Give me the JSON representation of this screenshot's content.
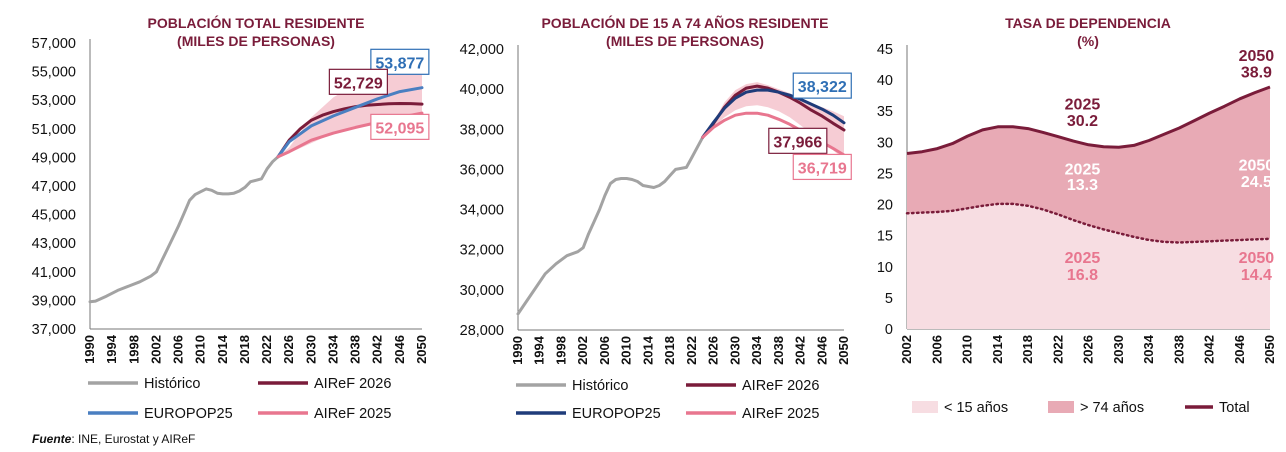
{
  "source": {
    "label": "Fuente",
    "text": ": INE, Eurostat y AIReF"
  },
  "chart_data": [
    {
      "type": "line",
      "title": "POBLACIÓN TOTAL RESIDENTE",
      "subtitle": "(MILES DE PERSONAS)",
      "ylim": [
        37000,
        57000
      ],
      "yticks": [
        37000,
        39000,
        41000,
        43000,
        45000,
        47000,
        49000,
        51000,
        53000,
        55000,
        57000
      ],
      "ytick_labels": [
        "37,000",
        "39,000",
        "41,000",
        "43,000",
        "45,000",
        "47,000",
        "49,000",
        "51,000",
        "53,000",
        "55,000",
        "57,000"
      ],
      "xlim": [
        1990,
        2050
      ],
      "xticks": [
        1990,
        1994,
        1998,
        2002,
        2006,
        2010,
        2014,
        2018,
        2022,
        2026,
        2030,
        2034,
        2038,
        2042,
        2046,
        2050
      ],
      "band": {
        "color": "#f4c3cc",
        "x": [
          2024,
          2026,
          2030,
          2034,
          2038,
          2042,
          2046,
          2050
        ],
        "low": [
          49050,
          49300,
          50000,
          50700,
          51150,
          51400,
          51500,
          51500
        ],
        "high": [
          49050,
          49700,
          51800,
          53200,
          54100,
          54700,
          55100,
          55200
        ]
      },
      "series": [
        {
          "name": "Histórico",
          "color": "#a3a3a3",
          "x": [
            1990,
            1991,
            1993,
            1995,
            1997,
            1999,
            2001,
            2002,
            2003,
            2004,
            2005,
            2006,
            2007,
            2008,
            2009,
            2010,
            2011,
            2012,
            2013,
            2014,
            2015,
            2016,
            2017,
            2018,
            2019,
            2020,
            2021,
            2022,
            2023,
            2024
          ],
          "y": [
            38900,
            38950,
            39300,
            39700,
            40000,
            40300,
            40700,
            41000,
            41800,
            42600,
            43400,
            44200,
            45100,
            46000,
            46400,
            46600,
            46800,
            46700,
            46500,
            46450,
            46450,
            46500,
            46650,
            46900,
            47300,
            47400,
            47500,
            48200,
            48700,
            49050
          ]
        },
        {
          "name": "AIReF 2026",
          "color": "#7a1c3a",
          "x": [
            2024,
            2026,
            2028,
            2030,
            2032,
            2034,
            2036,
            2038,
            2040,
            2042,
            2044,
            2046,
            2048,
            2050
          ],
          "y": [
            49050,
            50200,
            51000,
            51600,
            51950,
            52200,
            52400,
            52550,
            52650,
            52700,
            52750,
            52770,
            52760,
            52729
          ]
        },
        {
          "name": "EUROPOP25",
          "color": "#4a7fc1",
          "x": [
            2024,
            2026,
            2030,
            2034,
            2038,
            2042,
            2046,
            2050
          ],
          "y": [
            49050,
            50100,
            51200,
            51900,
            52500,
            53100,
            53600,
            53877
          ]
        },
        {
          "name": "AIReF 2025",
          "color": "#e8768f",
          "x": [
            2024,
            2026,
            2030,
            2034,
            2038,
            2042,
            2046,
            2050
          ],
          "y": [
            49050,
            49400,
            50200,
            50700,
            51100,
            51450,
            51800,
            52095
          ]
        }
      ],
      "labels": [
        {
          "text": "53,877",
          "color": "#2f6fb5",
          "x": 2046,
          "y": 55650
        },
        {
          "text": "52,729",
          "color": "#7a1c3a",
          "x": 2038.5,
          "y": 54250
        },
        {
          "text": "52,095",
          "color": "#e8768f",
          "x": 2046,
          "y": 51100
        }
      ],
      "legend": [
        "Histórico",
        "AIReF 2026",
        "EUROPOP25",
        "AIReF 2025"
      ]
    },
    {
      "type": "line",
      "title": "POBLACIÓN DE 15 A 74 AÑOS RESIDENTE",
      "subtitle": "(MILES DE PERSONAS)",
      "ylim": [
        28000,
        42000
      ],
      "yticks": [
        28000,
        30000,
        32000,
        34000,
        36000,
        38000,
        40000,
        42000
      ],
      "ytick_labels": [
        "28,000",
        "30,000",
        "32,000",
        "34,000",
        "36,000",
        "38,000",
        "40,000",
        "42,000"
      ],
      "xlim": [
        1990,
        2050
      ],
      "xticks": [
        1990,
        1994,
        1998,
        2002,
        2006,
        2010,
        2014,
        2018,
        2022,
        2026,
        2030,
        2034,
        2038,
        2042,
        2046,
        2050
      ],
      "band": {
        "color": "#f4c3cc",
        "x": [
          2024,
          2026,
          2028,
          2030,
          2032,
          2034,
          2036,
          2038,
          2040,
          2042,
          2044,
          2046,
          2048,
          2050
        ],
        "low": [
          37600,
          38100,
          38600,
          38950,
          39150,
          39200,
          39100,
          38900,
          38600,
          38200,
          37800,
          37400,
          36950,
          36500
        ],
        "high": [
          37600,
          38400,
          39350,
          39950,
          40250,
          40350,
          40200,
          40000,
          39800,
          39550,
          39300,
          39100,
          38900,
          38650
        ]
      },
      "series": [
        {
          "name": "Histórico",
          "color": "#a3a3a3",
          "x": [
            1990,
            1991,
            1993,
            1995,
            1997,
            1999,
            2001,
            2002,
            2003,
            2004,
            2005,
            2006,
            2007,
            2008,
            2009,
            2010,
            2011,
            2012,
            2013,
            2014,
            2015,
            2016,
            2017,
            2018,
            2019,
            2020,
            2021,
            2022,
            2023,
            2024
          ],
          "y": [
            28800,
            29200,
            30000,
            30800,
            31300,
            31700,
            31900,
            32100,
            32800,
            33400,
            34000,
            34700,
            35300,
            35500,
            35550,
            35550,
            35500,
            35400,
            35200,
            35150,
            35100,
            35200,
            35400,
            35700,
            36000,
            36050,
            36100,
            36600,
            37100,
            37600
          ]
        },
        {
          "name": "AIReF 2026",
          "color": "#7a1c3a",
          "x": [
            2024,
            2026,
            2028,
            2030,
            2032,
            2034,
            2036,
            2038,
            2040,
            2042,
            2044,
            2046,
            2048,
            2050
          ],
          "y": [
            37600,
            38300,
            39100,
            39700,
            40050,
            40150,
            40050,
            39850,
            39600,
            39300,
            38950,
            38650,
            38300,
            37966
          ]
        },
        {
          "name": "EUROPOP25",
          "color": "#1f3c7a",
          "x": [
            2024,
            2026,
            2028,
            2030,
            2032,
            2034,
            2036,
            2038,
            2040,
            2042,
            2044,
            2046,
            2048,
            2050
          ],
          "y": [
            37600,
            38350,
            39050,
            39550,
            39850,
            39950,
            39950,
            39850,
            39700,
            39500,
            39250,
            39000,
            38700,
            38322
          ]
        },
        {
          "name": "AIReF 2025",
          "color": "#e8768f",
          "x": [
            2024,
            2026,
            2028,
            2030,
            2032,
            2034,
            2036,
            2038,
            2040,
            2042,
            2044,
            2046,
            2048,
            2050
          ],
          "y": [
            37600,
            38100,
            38450,
            38700,
            38800,
            38800,
            38700,
            38500,
            38250,
            37950,
            37650,
            37350,
            37050,
            36719
          ]
        }
      ],
      "labels": [
        {
          "text": "38,322",
          "color": "#2f6fb5",
          "x": 2046,
          "y": 40150
        },
        {
          "text": "37,966",
          "color": "#7a1c3a",
          "x": 2041.5,
          "y": 37400
        },
        {
          "text": "36,719",
          "color": "#e8768f",
          "x": 2046,
          "y": 36100
        }
      ],
      "legend": [
        "Histórico",
        "AIReF 2026",
        "EUROPOP25",
        "AIReF 2025"
      ]
    },
    {
      "type": "area",
      "title": "TASA DE DEPENDENCIA",
      "subtitle": "(%)",
      "ylim": [
        0,
        45
      ],
      "yticks": [
        0,
        5,
        10,
        15,
        20,
        25,
        30,
        35,
        40,
        45
      ],
      "ytick_labels": [
        "0",
        "5",
        "10",
        "15",
        "20",
        "25",
        "30",
        "35",
        "40",
        "45"
      ],
      "xlim": [
        2002,
        2050
      ],
      "xticks": [
        2002,
        2006,
        2010,
        2014,
        2018,
        2022,
        2026,
        2030,
        2034,
        2038,
        2042,
        2046,
        2050
      ],
      "series": [
        {
          "name": "< 15 años",
          "color": "#f7dde2",
          "x": [
            2002,
            2004,
            2006,
            2008,
            2010,
            2012,
            2014,
            2016,
            2018,
            2020,
            2022,
            2024,
            2026,
            2028,
            2030,
            2032,
            2034,
            2036,
            2038,
            2040,
            2042,
            2044,
            2046,
            2048,
            2050
          ],
          "y": [
            18.6,
            18.7,
            18.8,
            19.0,
            19.4,
            19.8,
            20.1,
            20.1,
            19.8,
            19.2,
            18.4,
            17.5,
            16.7,
            16.0,
            15.4,
            14.8,
            14.3,
            14.0,
            13.9,
            14.0,
            14.1,
            14.2,
            14.3,
            14.4,
            14.5
          ]
        },
        {
          "name": "> 74 años",
          "color": "#e8aab5",
          "x": [],
          "y": []
        },
        {
          "name": "Total",
          "color": "#7a1c3a",
          "x": [
            2002,
            2004,
            2006,
            2008,
            2010,
            2012,
            2014,
            2016,
            2018,
            2020,
            2022,
            2024,
            2026,
            2028,
            2030,
            2032,
            2034,
            2036,
            2038,
            2040,
            2042,
            2044,
            2046,
            2048,
            2050
          ],
          "y": [
            28.2,
            28.5,
            29.0,
            29.8,
            31.0,
            32.0,
            32.5,
            32.5,
            32.2,
            31.6,
            30.9,
            30.2,
            29.6,
            29.3,
            29.2,
            29.5,
            30.3,
            31.3,
            32.3,
            33.5,
            34.7,
            35.8,
            37.0,
            38.0,
            38.9
          ]
        }
      ],
      "labels": [
        {
          "text": "2050",
          "color": "#7a1c3a",
          "x": 2048.2,
          "y": 43.1
        },
        {
          "text": "38.9",
          "color": "#7a1c3a",
          "x": 2048.2,
          "y": 40.4
        },
        {
          "text": "2025",
          "color": "#7a1c3a",
          "x": 2025.2,
          "y": 35.3
        },
        {
          "text": "30.2",
          "color": "#7a1c3a",
          "x": 2025.2,
          "y": 32.6
        },
        {
          "text": "2025",
          "color": "#ffffff",
          "x": 2025.2,
          "y": 24.8
        },
        {
          "text": "13.3",
          "color": "#ffffff",
          "x": 2025.2,
          "y": 22.3
        },
        {
          "text": "2050",
          "color": "#ffffff",
          "x": 2048.2,
          "y": 25.5
        },
        {
          "text": "24.5",
          "color": "#ffffff",
          "x": 2048.2,
          "y": 22.8
        },
        {
          "text": "2025",
          "color": "#e8768f",
          "x": 2025.2,
          "y": 10.6
        },
        {
          "text": "16.8",
          "color": "#e8768f",
          "x": 2025.2,
          "y": 7.9
        },
        {
          "text": "2050",
          "color": "#e8768f",
          "x": 2048.2,
          "y": 10.6
        },
        {
          "text": "14.4",
          "color": "#e8768f",
          "x": 2048.2,
          "y": 7.9
        }
      ],
      "legend": [
        "< 15 años",
        "> 74 años",
        "Total"
      ]
    }
  ]
}
